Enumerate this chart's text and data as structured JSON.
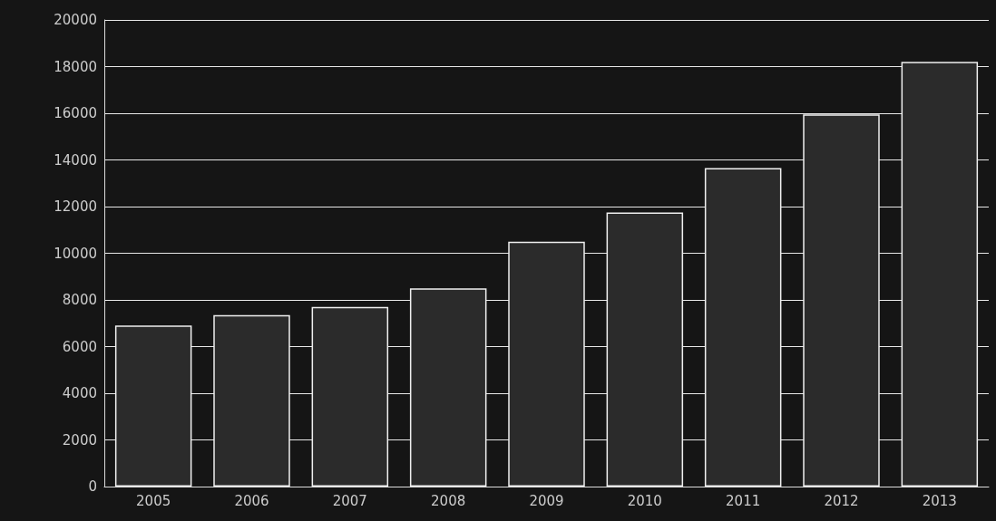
{
  "chart_data": {
    "type": "bar",
    "categories": [
      "2005",
      "2006",
      "2007",
      "2008",
      "2009",
      "2010",
      "2011",
      "2012",
      "2013"
    ],
    "values": [
      6900,
      7350,
      7700,
      8500,
      10500,
      11750,
      13650,
      15950,
      18200
    ],
    "color": "#2b2b2b",
    "ylim": [
      0,
      20000
    ],
    "yticks": [
      0,
      2000,
      4000,
      6000,
      8000,
      10000,
      12000,
      14000,
      16000,
      18000,
      20000
    ],
    "grid": "y"
  }
}
